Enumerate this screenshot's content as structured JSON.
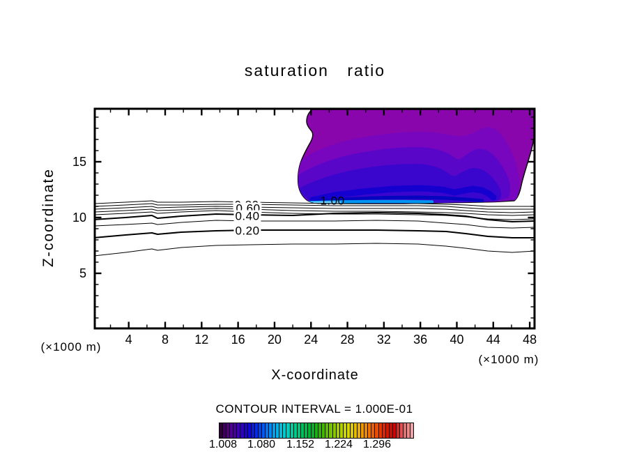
{
  "title": "saturation ratio",
  "axes": {
    "x_label": "X-coordinate",
    "y_label": "Z-coordinate",
    "x_unit_left": "(×1000 m)",
    "x_unit_right": "(×1000 m)",
    "x_major_ticks": [
      4,
      8,
      12,
      16,
      20,
      24,
      28,
      32,
      36,
      40,
      44,
      48
    ],
    "x_minor_step": 2,
    "y_major_ticks": [
      5,
      10,
      15
    ],
    "y_minor_step": 1
  },
  "contour_labels": [
    "1.00",
    "0.80",
    "0.60",
    "0.40",
    "0.20"
  ],
  "footer": {
    "interval_text": "CONTOUR INTERVAL = 1.000E-01",
    "colorbar_tick_labels": [
      "1.008",
      "1.080",
      "1.152",
      "1.224",
      "1.296"
    ]
  },
  "colors": {
    "frame": "#000000",
    "contour_line": "#000000",
    "band1": "#8806AC",
    "band2": "#7806BE",
    "band3": "#5A06C8",
    "band4": "#3A06CE",
    "band5": "#1500D0",
    "band6": "#0505BF",
    "cyan_strip": "#0095F0",
    "light_cyan_strip": "#70D0FF",
    "colorbar_stops": [
      "#30003C",
      "#56008C",
      "#3A00B4",
      "#1400D4",
      "#0032E8",
      "#0070F8",
      "#00AAF0",
      "#00CCD0",
      "#00CC98",
      "#00BE5A",
      "#00B02A",
      "#30B400",
      "#72C200",
      "#AACE00",
      "#D8D800",
      "#E8B400",
      "#EE8400",
      "#EE5000",
      "#DC2000",
      "#C80000",
      "#E06060",
      "#F4A0A4"
    ]
  },
  "chart_data": {
    "type": "heatmap",
    "subtype": "filled-contour-plot",
    "title": "saturation ratio",
    "xlabel": "X-coordinate (×1000 m)",
    "ylabel": "Z-coordinate (×1000 m)",
    "xlim": [
      0.2,
      48.6
    ],
    "ylim": [
      0,
      19.8
    ],
    "x_ticks": [
      4,
      8,
      12,
      16,
      20,
      24,
      28,
      32,
      36,
      40,
      44,
      48
    ],
    "y_ticks": [
      5,
      10,
      15
    ],
    "grid": false,
    "contour_interval": 0.1,
    "contour_interval_text": "CONTOUR INTERVAL = 1.000E-01",
    "labeled_line_levels": [
      0.2,
      0.4,
      0.6,
      0.8,
      1.0
    ],
    "line_contour_levels": [
      0.1,
      0.2,
      0.3,
      0.4,
      0.5,
      0.6,
      0.7,
      0.8,
      0.9,
      1.0
    ],
    "line_contours_description": "Unlabeled thin and labeled thick black contours (0.10–0.90) run quasi-horizontally between z≈6.5 and z≈11.5 across the full x range; they bow slightly upward near mid-domain and dip down near x≈41–44. Levels 0.5–0.9 bunch tightly near z≈10.5–11.3 where labels 0.60/0.80 overprint.",
    "filled_region_description": "Filled plume of saturation ratio ≥ 1.0 spans x≈22.5–48.6 and z≈11.3–19.8 (clipped by the frame top). Value increases downward: purple ≈1.0 at plume top grading through violet and blue to a thin cyan band ≈1.1 at the plume base near z≈11.5; the 1.00 contour label sits at the plume base near x≈25.",
    "colorbar": {
      "orientation": "horizontal",
      "tick_labels": [
        "1.008",
        "1.080",
        "1.152",
        "1.224",
        "1.296"
      ],
      "tick_values": [
        1.008,
        1.08,
        1.152,
        1.224,
        1.296
      ],
      "palette": "dark purple → blue → cyan → green → yellow → orange → red → pink, drawn as thin stripes separated by black rules"
    }
  }
}
